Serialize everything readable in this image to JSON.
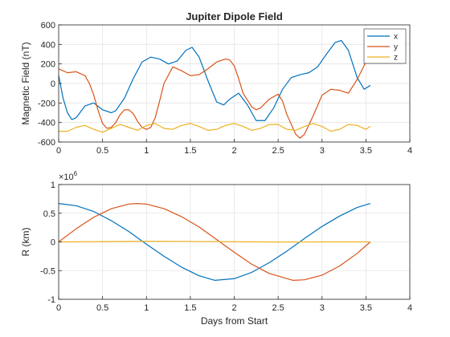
{
  "chart_data": [
    {
      "type": "line",
      "title": "Jupiter Dipole Field",
      "xlabel": "",
      "ylabel": "Magnetic Field (nT)",
      "xlim": [
        0,
        4
      ],
      "ylim": [
        -600,
        600
      ],
      "xticks": [
        0,
        0.5,
        1,
        1.5,
        2,
        2.5,
        3,
        3.5,
        4
      ],
      "xtick_labels": [
        "0",
        "0.5",
        "1",
        "1.5",
        "2",
        "2.5",
        "3",
        "3.5",
        "4"
      ],
      "yticks": [
        -600,
        -400,
        -200,
        0,
        200,
        400,
        600
      ],
      "ytick_labels": [
        "-600",
        "-400",
        "-200",
        "0",
        "200",
        "400",
        "600"
      ],
      "grid": true,
      "legend_position": "top-right",
      "series": [
        {
          "name": "x",
          "color": "#0072BD",
          "x": [
            0,
            0.05,
            0.1,
            0.15,
            0.2,
            0.3,
            0.4,
            0.5,
            0.6,
            0.65,
            0.75,
            0.85,
            0.95,
            1.05,
            1.15,
            1.25,
            1.35,
            1.45,
            1.52,
            1.6,
            1.7,
            1.8,
            1.88,
            1.95,
            2.05,
            2.15,
            2.25,
            2.35,
            2.45,
            2.55,
            2.65,
            2.75,
            2.85,
            2.95,
            3.05,
            3.15,
            3.22,
            3.3,
            3.4,
            3.48,
            3.55
          ],
          "y": [
            80,
            -150,
            -300,
            -370,
            -350,
            -230,
            -200,
            -270,
            -300,
            -280,
            -150,
            50,
            220,
            270,
            250,
            200,
            230,
            340,
            370,
            270,
            30,
            -190,
            -220,
            -160,
            -100,
            -220,
            -380,
            -380,
            -250,
            -60,
            60,
            90,
            110,
            170,
            300,
            420,
            440,
            340,
            60,
            -60,
            -20
          ]
        },
        {
          "name": "y",
          "color": "#D95319",
          "x": [
            0,
            0.05,
            0.1,
            0.2,
            0.3,
            0.35,
            0.4,
            0.45,
            0.5,
            0.55,
            0.6,
            0.65,
            0.7,
            0.75,
            0.8,
            0.85,
            0.9,
            0.95,
            1.0,
            1.05,
            1.1,
            1.15,
            1.2,
            1.3,
            1.4,
            1.5,
            1.6,
            1.7,
            1.8,
            1.9,
            1.95,
            2.0,
            2.05,
            2.1,
            2.2,
            2.25,
            2.3,
            2.4,
            2.5,
            2.55,
            2.6,
            2.7,
            2.75,
            2.8,
            2.9,
            3.0,
            3.1,
            3.2,
            3.3,
            3.4,
            3.5,
            3.55
          ],
          "y": [
            150,
            130,
            110,
            120,
            80,
            0,
            -120,
            -280,
            -410,
            -460,
            -450,
            -400,
            -320,
            -270,
            -270,
            -310,
            -390,
            -450,
            -470,
            -450,
            -350,
            -180,
            0,
            170,
            130,
            80,
            90,
            150,
            220,
            250,
            240,
            180,
            50,
            -100,
            -240,
            -270,
            -250,
            -160,
            -110,
            -180,
            -320,
            -520,
            -560,
            -520,
            -330,
            -120,
            -60,
            -70,
            -100,
            40,
            220,
            290
          ]
        },
        {
          "name": "z",
          "color": "#EDB120",
          "x": [
            0,
            0.1,
            0.2,
            0.3,
            0.4,
            0.5,
            0.6,
            0.7,
            0.8,
            0.9,
            1.0,
            1.1,
            1.2,
            1.3,
            1.4,
            1.5,
            1.6,
            1.7,
            1.8,
            1.9,
            2.0,
            2.1,
            2.2,
            2.3,
            2.4,
            2.5,
            2.6,
            2.7,
            2.8,
            2.9,
            3.0,
            3.1,
            3.2,
            3.3,
            3.4,
            3.5,
            3.55
          ],
          "y": [
            -490,
            -490,
            -450,
            -430,
            -470,
            -500,
            -460,
            -420,
            -450,
            -480,
            -430,
            -410,
            -460,
            -470,
            -430,
            -410,
            -440,
            -480,
            -470,
            -430,
            -410,
            -440,
            -480,
            -460,
            -420,
            -420,
            -470,
            -480,
            -440,
            -410,
            -440,
            -490,
            -470,
            -420,
            -430,
            -470,
            -440
          ]
        }
      ]
    },
    {
      "type": "line",
      "title": "",
      "xlabel": "Days from Start",
      "ylabel": "R (km)",
      "exponent_label": "×10",
      "exponent_power": "6",
      "xlim": [
        0,
        4
      ],
      "ylim": [
        -1,
        1
      ],
      "xticks": [
        0,
        0.5,
        1,
        1.5,
        2,
        2.5,
        3,
        3.5,
        4
      ],
      "xtick_labels": [
        "0",
        "0.5",
        "1",
        "1.5",
        "2",
        "2.5",
        "3",
        "3.5",
        "4"
      ],
      "yticks": [
        -1,
        -0.5,
        0,
        0.5,
        1
      ],
      "ytick_labels": [
        "-1",
        "-0.5",
        "0",
        "0.5",
        "1"
      ],
      "grid": true,
      "series": [
        {
          "color": "#0072BD",
          "x": [
            0,
            0.2,
            0.4,
            0.6,
            0.8,
            1.0,
            1.2,
            1.4,
            1.6,
            1.78,
            2.0,
            2.2,
            2.4,
            2.6,
            2.8,
            3.0,
            3.2,
            3.4,
            3.55
          ],
          "y": [
            0.67,
            0.63,
            0.53,
            0.37,
            0.18,
            -0.04,
            -0.25,
            -0.44,
            -0.59,
            -0.67,
            -0.64,
            -0.53,
            -0.36,
            -0.16,
            0.06,
            0.27,
            0.45,
            0.6,
            0.67
          ]
        },
        {
          "color": "#D95319",
          "x": [
            0,
            0.2,
            0.4,
            0.6,
            0.8,
            0.89,
            1.0,
            1.2,
            1.4,
            1.6,
            1.8,
            2.0,
            2.2,
            2.4,
            2.67,
            2.8,
            3.0,
            3.2,
            3.4,
            3.55
          ],
          "y": [
            0,
            0.23,
            0.43,
            0.58,
            0.66,
            0.67,
            0.66,
            0.58,
            0.44,
            0.26,
            0.04,
            -0.18,
            -0.39,
            -0.55,
            -0.67,
            -0.66,
            -0.58,
            -0.42,
            -0.2,
            0
          ]
        },
        {
          "color": "#EDB120",
          "x": [
            0,
            0.5,
            1.0,
            1.5,
            2.0,
            2.5,
            3.0,
            3.55
          ],
          "y": [
            0.0,
            0.005,
            0.01,
            0.008,
            0.003,
            -0.002,
            0.0,
            0.0
          ]
        }
      ]
    }
  ]
}
